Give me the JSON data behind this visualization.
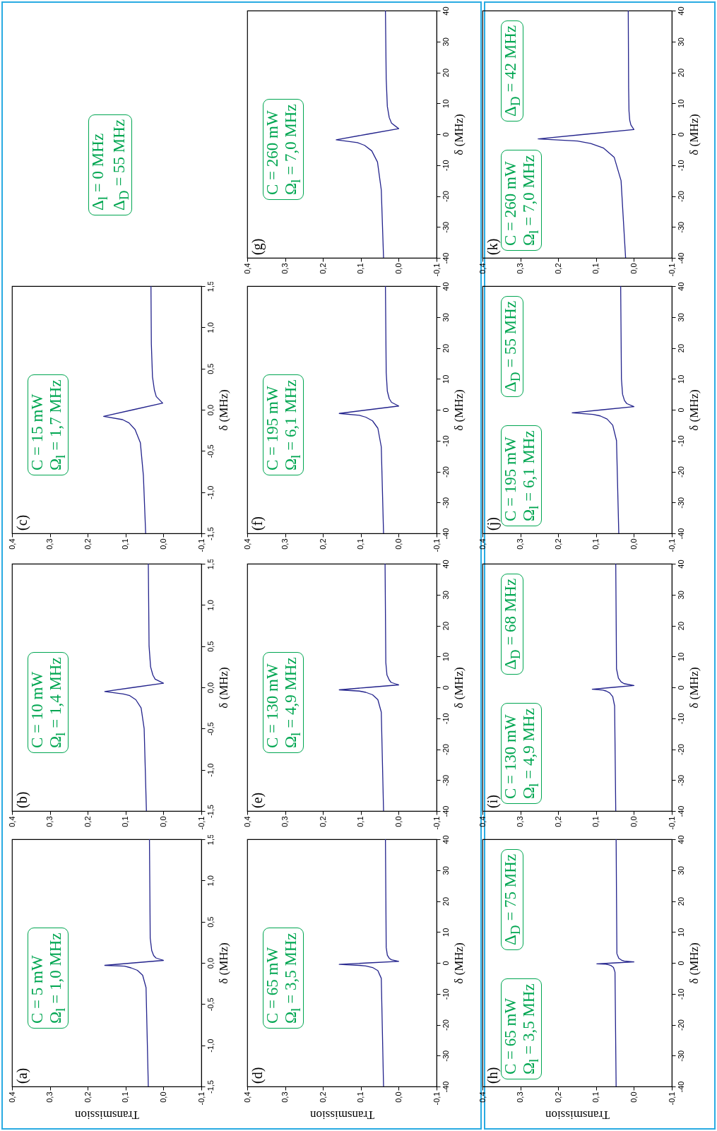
{
  "chart_data": [
    {
      "type": "line",
      "xlabel": "Transmission",
      "ylabel": "δ (MHz)",
      "xlim": [
        0.4,
        -0.1
      ],
      "ylim": [
        -1.5,
        1.5
      ],
      "xticks": [
        {
          "value": 0.4,
          "label": "0,4"
        },
        {
          "value": 0.3,
          "label": "0,3"
        },
        {
          "value": 0.2,
          "label": "0,2"
        },
        {
          "value": 0.1,
          "label": "0,1"
        },
        {
          "value": 0,
          "label": "0,0"
        },
        {
          "value": -0.1,
          "label": "-0,1"
        }
      ],
      "yticks": [
        {
          "value": -1.5,
          "label": "-1,5"
        },
        {
          "value": -1,
          "label": "-1,0"
        },
        {
          "value": -0.5,
          "label": "-0,5"
        },
        {
          "value": 0,
          "label": "0,0"
        },
        {
          "value": 0.5,
          "label": "0,5"
        },
        {
          "value": 1,
          "label": "1,0"
        },
        {
          "value": 1.5,
          "label": "1,5"
        }
      ],
      "grid": false,
      "annotations": [
        "(a)",
        "C = 5 mW",
        "Ω$_{l}$ = 1,0 MHz"
      ],
      "series": [
        {
          "color": "#23238c",
          "values": [
            -1.5,
            -0.3,
            -0.15,
            -0.09,
            -0.06,
            -0.04,
            -0.03,
            0,
            0.03,
            0.06,
            0.09,
            0.15,
            0.3,
            1.5
          ],
          "x": [
            0.04,
            0.046,
            0.055,
            0.069,
            0.086,
            0.103,
            0.155,
            0.078,
            0,
            0.02,
            0.026,
            0.031,
            0.035,
            0.037
          ]
        }
      ]
    },
    {
      "type": "line",
      "ylabel": "δ (MHz)",
      "xlim": [
        0.4,
        -0.1
      ],
      "ylim": [
        -1.5,
        1.5
      ],
      "xticks": [
        {
          "value": 0.4,
          "label": "0,4"
        },
        {
          "value": 0.3,
          "label": "0,3"
        },
        {
          "value": 0.2,
          "label": "0,2"
        },
        {
          "value": 0.1,
          "label": "0,1"
        },
        {
          "value": 0,
          "label": "0,0"
        },
        {
          "value": -0.1,
          "label": "-0,1"
        }
      ],
      "yticks": [
        {
          "value": -1.5,
          "label": "-1,5"
        },
        {
          "value": -1,
          "label": "-1,0"
        },
        {
          "value": -0.5,
          "label": "-0,5"
        },
        {
          "value": 0,
          "label": "0,0"
        },
        {
          "value": 0.5,
          "label": "0,5"
        },
        {
          "value": 1,
          "label": "1,0"
        },
        {
          "value": 1.5,
          "label": "1,5"
        }
      ],
      "grid": false,
      "annotations": [
        "(b)",
        "C = 10 mW",
        "Ω$_{l}$ = 1,4 MHz"
      ],
      "series": [
        {
          "color": "#23238c",
          "values": [
            -1.5,
            -0.5,
            -0.25,
            -0.15,
            -0.1,
            -0.08,
            -0.05,
            0,
            0.05,
            0.1,
            0.15,
            0.25,
            0.5,
            1.5
          ],
          "x": [
            0.045,
            0.051,
            0.059,
            0.073,
            0.089,
            0.106,
            0.155,
            0.078,
            0,
            0.022,
            0.028,
            0.034,
            0.038,
            0.04
          ]
        }
      ]
    },
    {
      "type": "line",
      "ylabel": "δ (MHz)",
      "xlim": [
        0.4,
        -0.1
      ],
      "ylim": [
        -1.5,
        1.5
      ],
      "xticks": [
        {
          "value": 0.4,
          "label": "0,4"
        },
        {
          "value": 0.3,
          "label": "0,3"
        },
        {
          "value": 0.2,
          "label": "0,2"
        },
        {
          "value": 0.1,
          "label": "0,1"
        },
        {
          "value": 0,
          "label": "0,0"
        },
        {
          "value": -0.1,
          "label": "-0,1"
        }
      ],
      "yticks": [
        {
          "value": -1.5,
          "label": "-1,5"
        },
        {
          "value": -1,
          "label": "-1,0"
        },
        {
          "value": -0.5,
          "label": "-0,5"
        },
        {
          "value": 0,
          "label": "0,0"
        },
        {
          "value": 0.5,
          "label": "0,5"
        },
        {
          "value": 1,
          "label": "1,0"
        },
        {
          "value": 1.5,
          "label": "1,5"
        }
      ],
      "grid": false,
      "annotations": [
        "(c)",
        "C = 15 mW",
        "Ω$_{l}$ = 1,7 MHz"
      ],
      "series": [
        {
          "color": "#23238c",
          "values": [
            -1.5,
            -0.8,
            -0.4,
            -0.24,
            -0.16,
            -0.12,
            -0.08,
            0,
            0.08,
            0.16,
            0.24,
            0.4,
            0.8,
            1.5
          ],
          "x": [
            0.047,
            0.053,
            0.061,
            0.075,
            0.091,
            0.108,
            0.158,
            0.08,
            0.002,
            0.019,
            0.024,
            0.029,
            0.032,
            0.033
          ]
        }
      ]
    },
    {
      "type": "line",
      "xlabel": "Transmission",
      "ylabel": "δ (MHz)",
      "xlim": [
        0.4,
        -0.1
      ],
      "ylim": [
        -40,
        40
      ],
      "xticks": [
        {
          "value": 0.4,
          "label": "0,4"
        },
        {
          "value": 0.3,
          "label": "0,3"
        },
        {
          "value": 0.2,
          "label": "0,2"
        },
        {
          "value": 0.1,
          "label": "0,1"
        },
        {
          "value": 0,
          "label": "0,0"
        },
        {
          "value": -0.1,
          "label": "-0,1"
        }
      ],
      "yticks": [
        -40,
        -30,
        -20,
        -10,
        0,
        10,
        20,
        30,
        40
      ],
      "grid": false,
      "annotations": [
        "(d)",
        "C = 65 mW",
        "Ω$_{l}$ = 3,5 MHz"
      ],
      "series": [
        {
          "color": "#23238c",
          "values": [
            -40,
            -5,
            -2.5,
            -1.5,
            -1,
            -0.8,
            -0.5,
            0,
            0.5,
            1,
            1.5,
            2.5,
            5,
            40
          ],
          "x": [
            0.04,
            0.046,
            0.055,
            0.069,
            0.087,
            0.104,
            0.157,
            0.079,
            0,
            0.019,
            0.025,
            0.03,
            0.033,
            0.035
          ]
        }
      ]
    },
    {
      "type": "line",
      "ylabel": "δ (MHz)",
      "xlim": [
        0.4,
        -0.1
      ],
      "ylim": [
        -40,
        40
      ],
      "xticks": [
        {
          "value": 0.4,
          "label": "0,4"
        },
        {
          "value": 0.3,
          "label": "0,3"
        },
        {
          "value": 0.2,
          "label": "0,2"
        },
        {
          "value": 0.1,
          "label": "0,1"
        },
        {
          "value": 0,
          "label": "0,0"
        },
        {
          "value": -0.1,
          "label": "-0,1"
        }
      ],
      "yticks": [
        -40,
        -30,
        -20,
        -10,
        0,
        10,
        20,
        30,
        40
      ],
      "grid": false,
      "annotations": [
        "(e)",
        "C = 130 mW",
        "Ω$_{l}$ = 4,9 MHz"
      ],
      "series": [
        {
          "color": "#23238c",
          "values": [
            -40,
            -8,
            -4,
            -2.4,
            -1.6,
            -1.2,
            -0.8,
            0,
            0.8,
            1.6,
            2.4,
            4,
            8,
            40
          ],
          "x": [
            0.04,
            0.046,
            0.055,
            0.069,
            0.087,
            0.104,
            0.157,
            0.079,
            0,
            0.02,
            0.025,
            0.031,
            0.034,
            0.036
          ]
        }
      ]
    },
    {
      "type": "line",
      "ylabel": "δ (MHz)",
      "xlim": [
        0.4,
        -0.1
      ],
      "ylim": [
        -40,
        40
      ],
      "xticks": [
        {
          "value": 0.4,
          "label": "0,4"
        },
        {
          "value": 0.3,
          "label": "0,3"
        },
        {
          "value": 0.2,
          "label": "0,2"
        },
        {
          "value": 0.1,
          "label": "0,1"
        },
        {
          "value": 0,
          "label": "0,0"
        },
        {
          "value": -0.1,
          "label": "-0,1"
        }
      ],
      "yticks": [
        -40,
        -30,
        -20,
        -10,
        0,
        10,
        20,
        30,
        40
      ],
      "grid": false,
      "annotations": [
        "(f)",
        "C = 195 mW",
        "Ω$_{l}$ = 6,1 MHz"
      ],
      "series": [
        {
          "color": "#23238c",
          "values": [
            -40,
            -12,
            -6,
            -3.6,
            -2.4,
            -1.8,
            -1.2,
            0,
            1.2,
            2.4,
            3.6,
            6,
            12,
            40
          ],
          "x": [
            0.04,
            0.046,
            0.055,
            0.069,
            0.087,
            0.104,
            0.157,
            0.079,
            0,
            0.019,
            0.025,
            0.03,
            0.033,
            0.035
          ]
        }
      ]
    },
    {
      "type": "line",
      "ylabel": "δ (MHz)",
      "xlim": [
        0.4,
        -0.1
      ],
      "ylim": [
        -40,
        40
      ],
      "xticks": [
        {
          "value": 0.4,
          "label": "0,4"
        },
        {
          "value": 0.3,
          "label": "0,3"
        },
        {
          "value": 0.2,
          "label": "0,2"
        },
        {
          "value": 0.1,
          "label": "0,1"
        },
        {
          "value": 0,
          "label": "0,0"
        },
        {
          "value": -0.1,
          "label": "-0,1"
        }
      ],
      "yticks": [
        -40,
        -30,
        -20,
        -10,
        0,
        10,
        20,
        30,
        40
      ],
      "grid": false,
      "annotations": [
        "(g)",
        "C = 260 mW",
        "Ω$_{l}$ = 7,0 MHz"
      ],
      "series": [
        {
          "color": "#23238c",
          "values": [
            -40,
            -18,
            -9,
            -5.4,
            -3.6,
            -2.7,
            -1.8,
            0,
            1.8,
            3.6,
            5.4,
            9,
            18,
            40
          ],
          "x": [
            0.04,
            0.046,
            0.056,
            0.071,
            0.09,
            0.109,
            0.165,
            0.083,
            0,
            0.019,
            0.025,
            0.03,
            0.033,
            0.035
          ]
        }
      ]
    },
    {
      "type": "line",
      "xlabel": "Transmission",
      "ylabel": "δ (MHz)",
      "xlim": [
        0.4,
        -0.1
      ],
      "ylim": [
        -40,
        40
      ],
      "xticks": [
        {
          "value": 0.4,
          "label": "0,4"
        },
        {
          "value": 0.3,
          "label": "0,3"
        },
        {
          "value": 0.2,
          "label": "0,2"
        },
        {
          "value": 0.1,
          "label": "0,1"
        },
        {
          "value": 0,
          "label": "0,0"
        },
        {
          "value": -0.1,
          "label": "-0,1"
        }
      ],
      "yticks": [
        -40,
        -30,
        -20,
        -10,
        0,
        10,
        20,
        30,
        40
      ],
      "grid": false,
      "annotations": [
        "(h)",
        "C = 65 mW",
        "Ω$_{l}$ = 3,5 MHz",
        "Δ$_{D}$ = 75 MHz"
      ],
      "series": [
        {
          "color": "#23238c",
          "values": [
            -40,
            -3,
            -1.5,
            -0.9,
            -0.6,
            -0.4,
            -0.3,
            0,
            0.3,
            0.6,
            0.9,
            1.5,
            3,
            40
          ],
          "x": [
            0.047,
            0.05,
            0.054,
            0.06,
            0.067,
            0.075,
            0.098,
            0.049,
            0,
            0.026,
            0.033,
            0.04,
            0.045,
            0.047
          ]
        }
      ]
    },
    {
      "type": "line",
      "ylabel": "δ (MHz)",
      "xlim": [
        0.4,
        -0.1
      ],
      "ylim": [
        -40,
        40
      ],
      "xticks": [
        {
          "value": 0.4,
          "label": "0,4"
        },
        {
          "value": 0.3,
          "label": "0,3"
        },
        {
          "value": 0.2,
          "label": "0,2"
        },
        {
          "value": 0.1,
          "label": "0,1"
        },
        {
          "value": 0,
          "label": "0,0"
        },
        {
          "value": -0.1,
          "label": "-0,1"
        }
      ],
      "yticks": [
        -40,
        -30,
        -20,
        -10,
        0,
        10,
        20,
        30,
        40
      ],
      "grid": false,
      "annotations": [
        "(i)",
        "C = 130 mW",
        "Ω$_{l}$ = 4,9 MHz",
        "Δ$_{D}$ = 68 MHz"
      ],
      "series": [
        {
          "color": "#23238c",
          "values": [
            -40,
            -6,
            -3,
            -1.8,
            -1.2,
            -0.9,
            -0.6,
            0,
            0.6,
            1.2,
            1.8,
            3,
            6,
            40
          ],
          "x": [
            0.048,
            0.051,
            0.056,
            0.064,
            0.073,
            0.082,
            0.11,
            0.055,
            0,
            0.026,
            0.034,
            0.041,
            0.046,
            0.048
          ]
        }
      ]
    },
    {
      "type": "line",
      "ylabel": "δ (MHz)",
      "xlim": [
        0.4,
        -0.1
      ],
      "ylim": [
        -40,
        40
      ],
      "xticks": [
        {
          "value": 0.4,
          "label": "0,4"
        },
        {
          "value": 0.3,
          "label": "0,3"
        },
        {
          "value": 0.2,
          "label": "0,2"
        },
        {
          "value": 0.1,
          "label": "0,1"
        },
        {
          "value": 0,
          "label": "0,0"
        },
        {
          "value": -0.1,
          "label": "-0,1"
        }
      ],
      "yticks": [
        -40,
        -30,
        -20,
        -10,
        0,
        10,
        20,
        30,
        40
      ],
      "grid": false,
      "annotations": [
        "(j)",
        "C = 195 mW",
        "Ω$_{l}$ = 6,1 MHz",
        "Δ$_{D}$ = 55 MHz"
      ],
      "series": [
        {
          "color": "#23238c",
          "values": [
            -40,
            -10,
            -5,
            -3,
            -2,
            -1.5,
            -1,
            0,
            1,
            2,
            3,
            5,
            10,
            40
          ],
          "x": [
            0.04,
            0.046,
            0.056,
            0.071,
            0.089,
            0.108,
            0.163,
            0.082,
            0,
            0.019,
            0.025,
            0.03,
            0.033,
            0.035
          ]
        }
      ]
    },
    {
      "type": "line",
      "ylabel": "δ (MHz)",
      "xlim": [
        0.4,
        -0.1
      ],
      "ylim": [
        -40,
        40
      ],
      "xticks": [
        {
          "value": 0.4,
          "label": "0,4"
        },
        {
          "value": 0.3,
          "label": "0,3"
        },
        {
          "value": 0.2,
          "label": "0,2"
        },
        {
          "value": 0.1,
          "label": "0,1"
        },
        {
          "value": 0,
          "label": "0,0"
        },
        {
          "value": -0.1,
          "label": "-0,1"
        }
      ],
      "yticks": [
        -40,
        -30,
        -20,
        -10,
        0,
        10,
        20,
        30,
        40
      ],
      "grid": false,
      "annotations": [
        "(k)",
        "C = 260 mW",
        "Ω$_{l}$ = 7,0 MHz",
        "Δ$_{D}$ = 42 MHz"
      ],
      "series": [
        {
          "color": "#23238c",
          "values": [
            -40,
            -15,
            -7.5,
            -4.5,
            -3,
            -2.2,
            -1.5,
            0,
            1.5,
            3,
            4.5,
            7.5,
            15,
            40
          ],
          "x": [
            0.022,
            0.034,
            0.052,
            0.08,
            0.114,
            0.149,
            0.253,
            0.127,
            0,
            0.008,
            0.011,
            0.013,
            0.014,
            0.015
          ]
        }
      ]
    },
    {
      "type": "other",
      "annotations": [
        "Δ$_{l}$ = 0 MHz",
        "Δ$_{D}$ = 55 MHz"
      ]
    }
  ]
}
